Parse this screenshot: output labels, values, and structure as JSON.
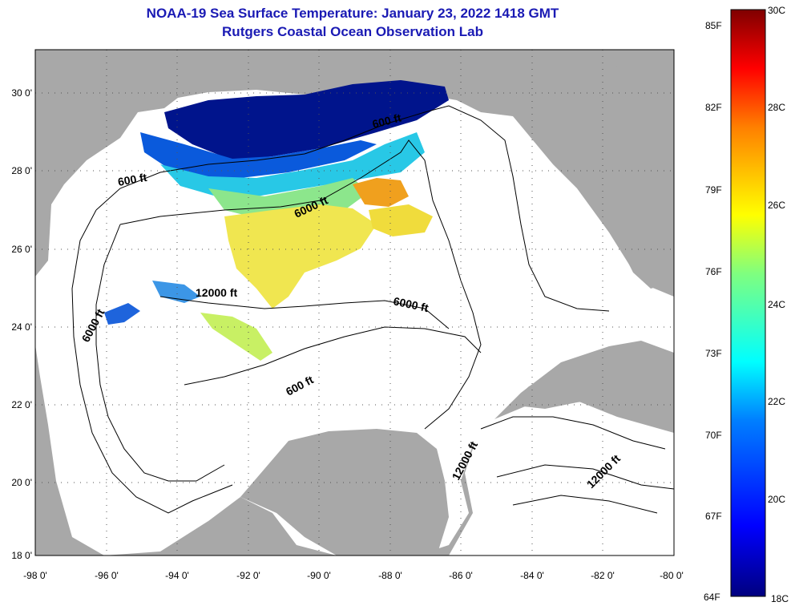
{
  "title": "NOAA-19 Sea Surface Temperature:  January 23, 2022 1418 GMT",
  "subtitle": "Rutgers Coastal Ocean Observation Lab",
  "map": {
    "lon_range": [
      -98,
      -80
    ],
    "lat_range": [
      18,
      31
    ],
    "lon_ticks": [
      "-98 0'",
      "-96 0'",
      "-94 0'",
      "-92 0'",
      "-90 0'",
      "-88 0'",
      "-86 0'",
      "-84 0'",
      "-82 0'",
      "-80 0'"
    ],
    "lat_ticks": [
      "30 0'",
      "28 0'",
      "26 0'",
      "24 0'",
      "22 0'",
      "20 0'",
      "18 0'"
    ],
    "contour_labels": [
      "600 ft",
      "600 ft",
      "6000 ft",
      "12000 ft",
      "6000 ft",
      "6000 ft",
      "600 ft",
      "12000 ft",
      "12000 ft"
    ],
    "land_color": "#a8a8a8",
    "ocean_color": "#ffffff"
  },
  "colorbar": {
    "top_label_c": "30C",
    "bottom_label_c": "18C",
    "bottom_label_f": "64F",
    "fahrenheit_ticks": [
      "85F",
      "82F",
      "79F",
      "76F",
      "73F",
      "70F",
      "67F"
    ],
    "celsius_ticks": [
      "28C",
      "26C",
      "24C",
      "22C",
      "20C"
    ],
    "range_c": [
      18,
      30
    ],
    "colors": [
      "#00007f",
      "#0000ff",
      "#007fff",
      "#00ffff",
      "#7fff7f",
      "#ffff00",
      "#ff7f00",
      "#ff0000",
      "#7f0000"
    ]
  }
}
